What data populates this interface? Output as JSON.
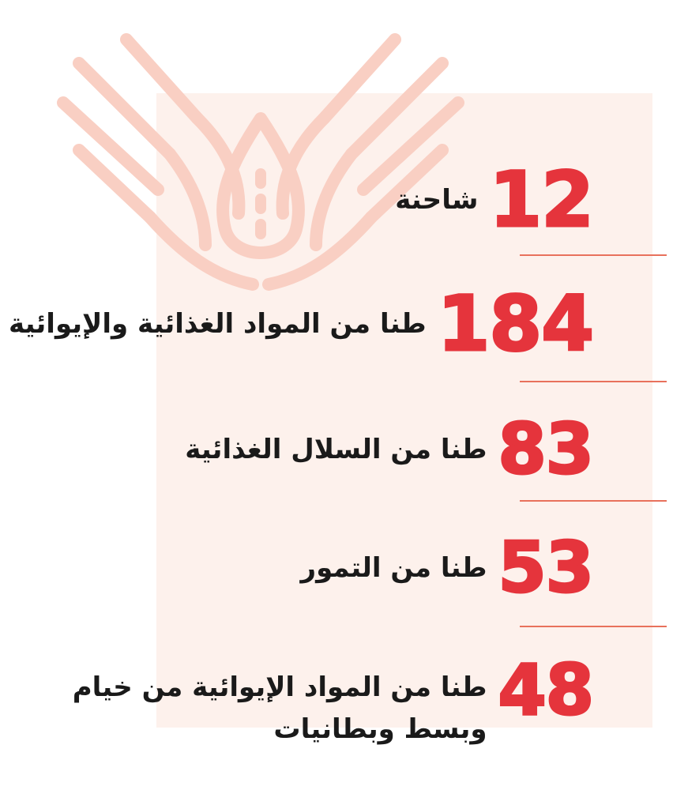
{
  "accent_color": "#e5343c",
  "divider_color": "#e8715c",
  "panel_color": "#fdf1ec",
  "icon": "giving-hands-icon",
  "stats": [
    {
      "number": "12",
      "label": "شاحنة"
    },
    {
      "number": "184",
      "label": "طنا من المواد الغذائية والإيوائية"
    },
    {
      "number": "83",
      "label": "طنا من السلال الغذائية"
    },
    {
      "number": "53",
      "label": "طنا من التمور"
    },
    {
      "number": "48",
      "label": "طنا من المواد الإيوائية من خيام وبسط وبطانيات"
    }
  ]
}
